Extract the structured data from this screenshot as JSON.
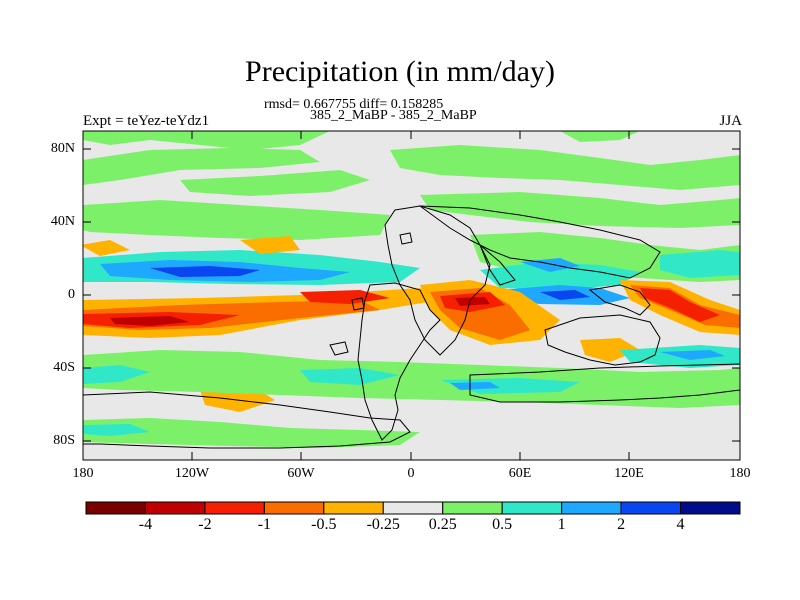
{
  "title": "Precipitation (in mm/day)",
  "stats_line": "rmsd= 0.667755 diff= 0.158285",
  "runs_line": "385_2_MaBP - 385_2_MaBP",
  "expt_label": "Expt = teYez-teYdz1",
  "season": "JJA",
  "lat_labels": [
    "80N",
    "40N",
    "0",
    "40S",
    "80S"
  ],
  "lon_labels": [
    "180",
    "120W",
    "60W",
    "0",
    "60E",
    "120E",
    "180"
  ],
  "colorbar": {
    "colors": [
      "#7a0000",
      "#c00000",
      "#f52000",
      "#fa6e00",
      "#ffb300",
      "#e8e8e8",
      "#7df06a",
      "#30e8c8",
      "#1ea8ff",
      "#0a46f0",
      "#000c8c"
    ],
    "labels": [
      "-4",
      "-2",
      "-1",
      "-0.5",
      "-0.25",
      "0.25",
      "0.5",
      "1",
      "2",
      "4"
    ]
  },
  "colors": {
    "ocean_bg": "#e8e8e8",
    "coast": "#000000"
  }
}
